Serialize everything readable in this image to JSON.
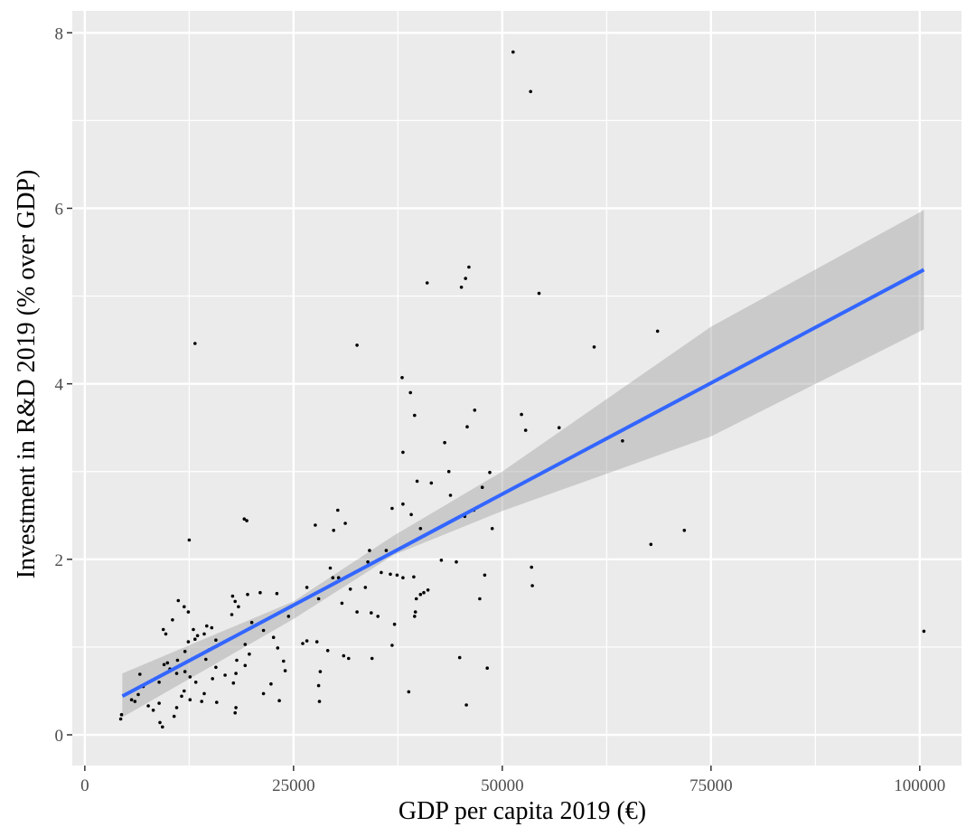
{
  "chart_data": {
    "type": "scatter",
    "title": "",
    "xlabel": "GDP per capita 2019 (€)",
    "ylabel": "Investment in R&D 2019 (% over GDP)",
    "xlim": [
      -1500,
      105000
    ],
    "ylim": [
      -0.35,
      8.25
    ],
    "x_ticks": [
      0,
      25000,
      50000,
      75000,
      100000
    ],
    "x_tick_labels": [
      "0",
      "25000",
      "50000",
      "75000",
      "100000"
    ],
    "y_ticks": [
      0,
      2,
      4,
      6,
      8
    ],
    "y_tick_labels": [
      "0",
      "2",
      "4",
      "6",
      "8"
    ],
    "grid": true,
    "panel_background": "#ebebeb",
    "grid_color": "#ffffff",
    "point_color": "#000000",
    "fit_color": "#3366ff",
    "ribbon_color": "#999999",
    "fit_line": {
      "method": "linear",
      "x": [
        4500,
        100500
      ],
      "y": [
        0.44,
        5.3
      ]
    },
    "confidence_band": {
      "x": [
        4500,
        25000,
        37000,
        50000,
        75000,
        100500
      ],
      "lower": [
        0.2,
        1.32,
        2.05,
        2.55,
        3.4,
        4.62
      ],
      "upper": [
        0.7,
        1.52,
        2.27,
        3.0,
        4.65,
        5.98
      ]
    },
    "points": [
      [
        51300,
        7.78
      ],
      [
        53400,
        7.33
      ],
      [
        54400,
        5.03
      ],
      [
        41000,
        5.15
      ],
      [
        45600,
        5.2
      ],
      [
        46000,
        5.33
      ],
      [
        45100,
        5.1
      ],
      [
        13200,
        4.46
      ],
      [
        32600,
        4.44
      ],
      [
        61000,
        4.42
      ],
      [
        68600,
        4.6
      ],
      [
        38000,
        4.07
      ],
      [
        39000,
        3.9
      ],
      [
        39500,
        3.64
      ],
      [
        46700,
        3.7
      ],
      [
        45800,
        3.51
      ],
      [
        52300,
        3.65
      ],
      [
        52800,
        3.47
      ],
      [
        56800,
        3.5
      ],
      [
        64400,
        3.35
      ],
      [
        43100,
        3.33
      ],
      [
        38100,
        3.22
      ],
      [
        43600,
        3.0
      ],
      [
        48500,
        2.99
      ],
      [
        39800,
        2.89
      ],
      [
        41500,
        2.87
      ],
      [
        47600,
        2.82
      ],
      [
        43800,
        2.73
      ],
      [
        38100,
        2.63
      ],
      [
        36800,
        2.58
      ],
      [
        39100,
        2.51
      ],
      [
        46600,
        2.56
      ],
      [
        45500,
        2.49
      ],
      [
        48800,
        2.35
      ],
      [
        19100,
        2.46
      ],
      [
        19400,
        2.44
      ],
      [
        27600,
        2.39
      ],
      [
        30300,
        2.56
      ],
      [
        31200,
        2.41
      ],
      [
        29800,
        2.33
      ],
      [
        12500,
        2.22
      ],
      [
        67800,
        2.17
      ],
      [
        71800,
        2.33
      ],
      [
        34100,
        2.1
      ],
      [
        36100,
        2.1
      ],
      [
        40200,
        2.35
      ],
      [
        42700,
        1.99
      ],
      [
        44500,
        1.97
      ],
      [
        53500,
        1.91
      ],
      [
        53600,
        1.7
      ],
      [
        47900,
        1.82
      ],
      [
        47300,
        1.55
      ],
      [
        29400,
        1.9
      ],
      [
        30400,
        1.79
      ],
      [
        29700,
        1.79
      ],
      [
        31800,
        1.66
      ],
      [
        33600,
        1.68
      ],
      [
        33900,
        1.97
      ],
      [
        35500,
        1.85
      ],
      [
        36600,
        1.83
      ],
      [
        37400,
        1.82
      ],
      [
        38100,
        1.79
      ],
      [
        39400,
        1.8
      ],
      [
        39700,
        1.55
      ],
      [
        39600,
        1.4
      ],
      [
        40200,
        1.6
      ],
      [
        40600,
        1.62
      ],
      [
        41100,
        1.65
      ],
      [
        39500,
        1.35
      ],
      [
        26600,
        1.68
      ],
      [
        28000,
        1.55
      ],
      [
        30800,
        1.5
      ],
      [
        32600,
        1.4
      ],
      [
        34300,
        1.39
      ],
      [
        35100,
        1.35
      ],
      [
        37100,
        1.26
      ],
      [
        36800,
        1.02
      ],
      [
        24700,
        1.46
      ],
      [
        24400,
        1.35
      ],
      [
        26100,
        1.04
      ],
      [
        26600,
        1.07
      ],
      [
        27800,
        1.06
      ],
      [
        29100,
        0.96
      ],
      [
        31000,
        0.9
      ],
      [
        31600,
        0.87
      ],
      [
        34400,
        0.87
      ],
      [
        44900,
        0.88
      ],
      [
        48200,
        0.76
      ],
      [
        28200,
        0.72
      ],
      [
        28000,
        0.56
      ],
      [
        28100,
        0.38
      ],
      [
        38800,
        0.49
      ],
      [
        45700,
        0.34
      ],
      [
        21000,
        1.62
      ],
      [
        23000,
        1.61
      ],
      [
        20000,
        1.28
      ],
      [
        21400,
        1.19
      ],
      [
        22600,
        1.11
      ],
      [
        23100,
        0.99
      ],
      [
        23800,
        0.84
      ],
      [
        24000,
        0.73
      ],
      [
        22300,
        0.58
      ],
      [
        21400,
        0.47
      ],
      [
        23300,
        0.39
      ],
      [
        17700,
        1.58
      ],
      [
        18000,
        1.52
      ],
      [
        19500,
        1.6
      ],
      [
        18400,
        1.46
      ],
      [
        17600,
        1.37
      ],
      [
        19200,
        1.03
      ],
      [
        19700,
        0.92
      ],
      [
        19200,
        0.79
      ],
      [
        18200,
        0.85
      ],
      [
        18100,
        0.7
      ],
      [
        17800,
        0.59
      ],
      [
        18100,
        0.31
      ],
      [
        18000,
        0.25
      ],
      [
        14600,
        1.24
      ],
      [
        15200,
        1.22
      ],
      [
        14300,
        1.15
      ],
      [
        15700,
        1.08
      ],
      [
        14900,
        0.97
      ],
      [
        14500,
        0.86
      ],
      [
        15700,
        0.77
      ],
      [
        16800,
        0.68
      ],
      [
        15300,
        0.64
      ],
      [
        14300,
        0.47
      ],
      [
        14000,
        0.38
      ],
      [
        15800,
        0.37
      ],
      [
        11200,
        1.53
      ],
      [
        11900,
        1.46
      ],
      [
        12400,
        1.4
      ],
      [
        10500,
        1.31
      ],
      [
        13000,
        1.2
      ],
      [
        13500,
        1.13
      ],
      [
        13200,
        1.09
      ],
      [
        12400,
        1.06
      ],
      [
        12000,
        0.95
      ],
      [
        11100,
        0.85
      ],
      [
        9400,
        1.2
      ],
      [
        9700,
        1.15
      ],
      [
        9900,
        0.82
      ],
      [
        9500,
        0.8
      ],
      [
        10200,
        0.75
      ],
      [
        11000,
        0.7
      ],
      [
        12000,
        0.72
      ],
      [
        12600,
        0.66
      ],
      [
        13300,
        0.6
      ],
      [
        11900,
        0.5
      ],
      [
        11600,
        0.44
      ],
      [
        12600,
        0.4
      ],
      [
        11000,
        0.31
      ],
      [
        10700,
        0.21
      ],
      [
        6600,
        0.69
      ],
      [
        7000,
        0.55
      ],
      [
        6400,
        0.46
      ],
      [
        5600,
        0.4
      ],
      [
        7600,
        0.33
      ],
      [
        6000,
        0.38
      ],
      [
        8900,
        0.6
      ],
      [
        8900,
        0.36
      ],
      [
        9000,
        0.14
      ],
      [
        9300,
        0.09
      ],
      [
        8200,
        0.28
      ],
      [
        4400,
        0.23
      ],
      [
        4300,
        0.18
      ],
      [
        100500,
        1.18
      ]
    ]
  }
}
